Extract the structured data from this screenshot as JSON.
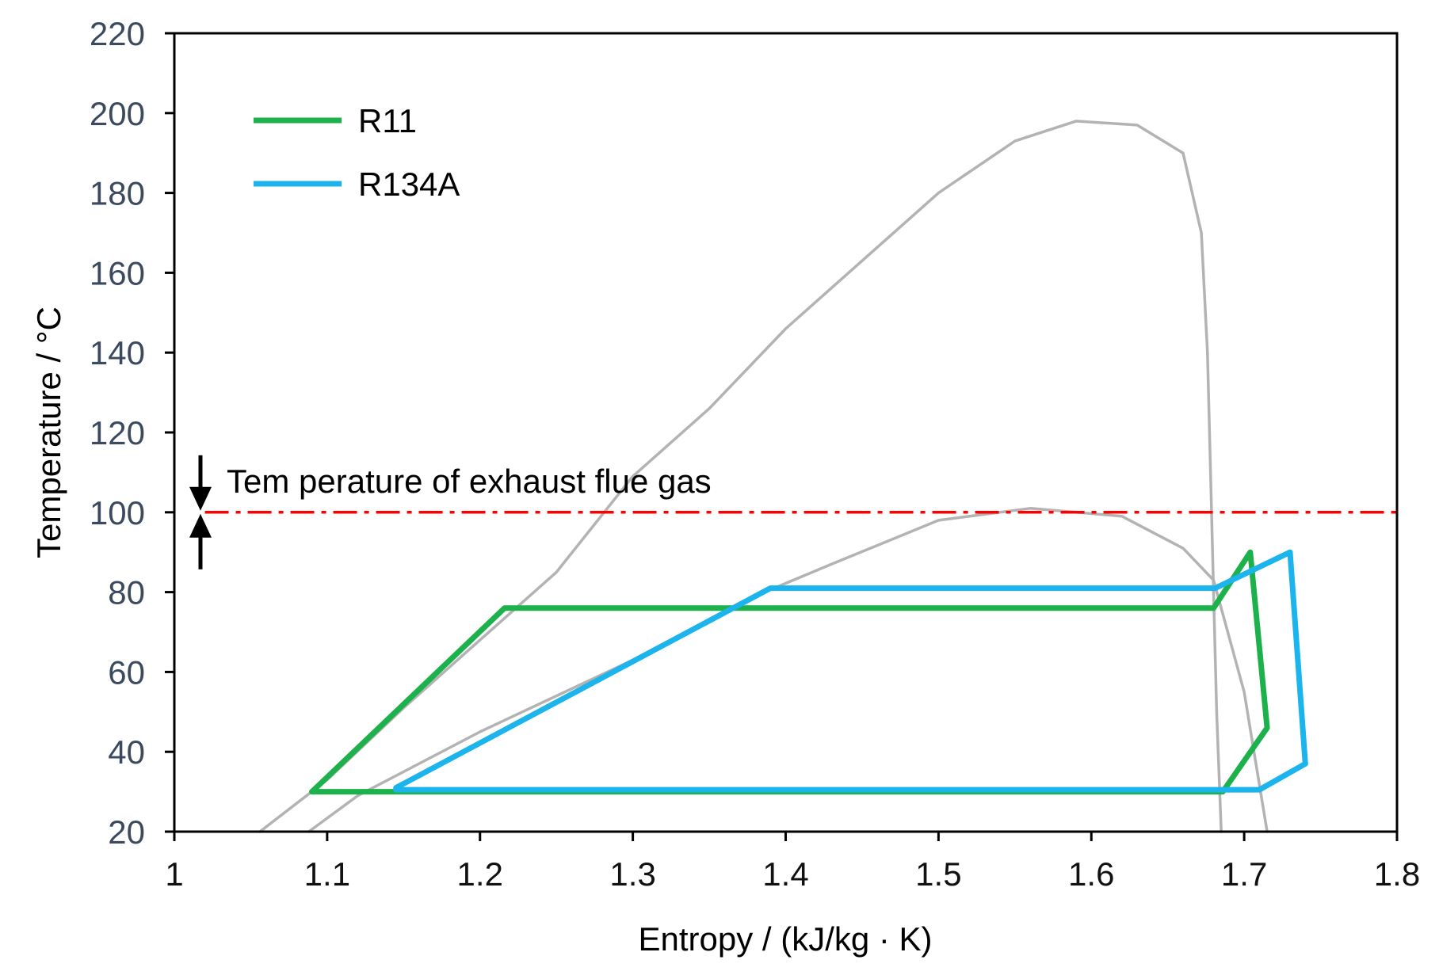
{
  "chart_data": {
    "type": "line",
    "title": "",
    "xlabel": "Entropy /  (kJ/kg · K)",
    "ylabel": "Temperature / °C",
    "xlim": [
      1,
      1.8
    ],
    "ylim": [
      20,
      220
    ],
    "x_ticks": [
      "1",
      "1.1",
      "1.2",
      "1.3",
      "1.4",
      "1.5",
      "1.6",
      "1.7",
      "1.8"
    ],
    "y_ticks": [
      "20",
      "40",
      "60",
      "80",
      "100",
      "120",
      "140",
      "160",
      "180",
      "200",
      "220"
    ],
    "grid": false,
    "legend_position": "top-left",
    "colors": {
      "R11": "#1db14b",
      "R134A": "#1cb4ec",
      "dome": "#b3b3b3",
      "exhaust": "#ff0000",
      "axis": "#000000"
    },
    "series": [
      {
        "name": "R11",
        "legend": true,
        "color": "#1db14b",
        "points": [
          [
            1.09,
            30
          ],
          [
            1.216,
            76
          ],
          [
            1.68,
            76
          ],
          [
            1.704,
            90
          ],
          [
            1.715,
            46
          ],
          [
            1.686,
            30
          ],
          [
            1.09,
            30
          ]
        ]
      },
      {
        "name": "R134A",
        "legend": true,
        "color": "#1cb4ec",
        "points": [
          [
            1.145,
            31
          ],
          [
            1.39,
            81
          ],
          [
            1.681,
            81
          ],
          [
            1.73,
            90
          ],
          [
            1.74,
            37
          ],
          [
            1.71,
            30.5
          ],
          [
            1.145,
            30.5
          ]
        ]
      },
      {
        "legend": false,
        "color": "#b3b3b3",
        "points": [
          [
            1.056,
            20
          ],
          [
            1.1,
            33
          ],
          [
            1.15,
            51
          ],
          [
            1.2,
            68
          ],
          [
            1.25,
            85
          ],
          [
            1.3,
            109
          ],
          [
            1.35,
            126
          ],
          [
            1.4,
            146
          ],
          [
            1.45,
            163
          ],
          [
            1.5,
            180
          ],
          [
            1.55,
            193
          ],
          [
            1.59,
            198
          ],
          [
            1.63,
            197
          ],
          [
            1.66,
            190
          ],
          [
            1.672,
            170
          ],
          [
            1.676,
            140
          ],
          [
            1.678,
            110
          ],
          [
            1.68,
            80
          ],
          [
            1.682,
            50
          ],
          [
            1.685,
            20
          ]
        ]
      },
      {
        "legend": false,
        "color": "#b3b3b3",
        "points": [
          [
            1.088,
            20
          ],
          [
            1.12,
            29
          ],
          [
            1.2,
            45
          ],
          [
            1.3,
            63
          ],
          [
            1.38,
            79
          ],
          [
            1.43,
            87
          ],
          [
            1.5,
            98
          ],
          [
            1.56,
            101
          ],
          [
            1.62,
            99
          ],
          [
            1.66,
            91
          ],
          [
            1.68,
            83
          ],
          [
            1.7,
            55
          ],
          [
            1.715,
            20
          ]
        ]
      }
    ],
    "reference_lines": [
      {
        "y": 100,
        "color": "#ff0000",
        "style": "dash-dot",
        "x_from": 1.02,
        "x_to": 1.8
      }
    ],
    "annotations": [
      {
        "text": "Tem perature of exhaust flue gas",
        "x": 1.033,
        "y": 104
      }
    ]
  }
}
